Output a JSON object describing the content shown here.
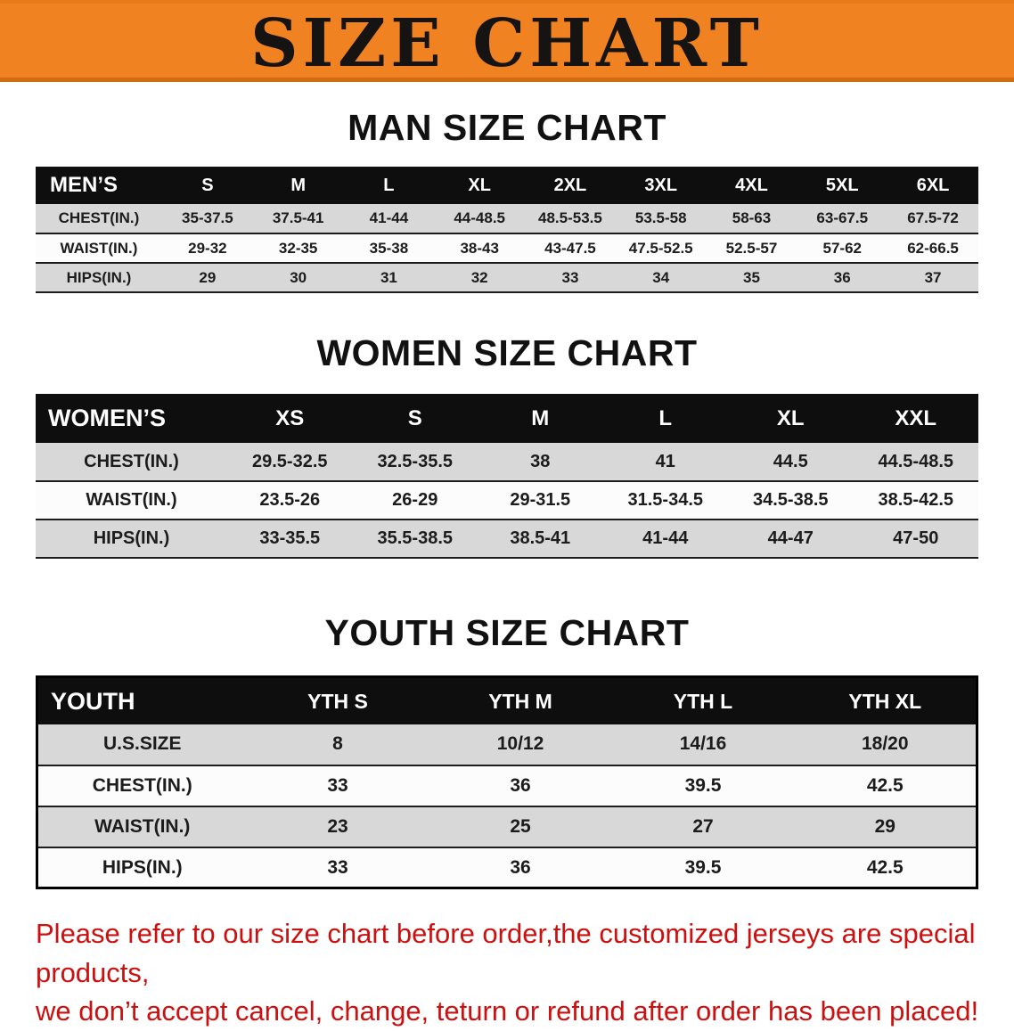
{
  "banner": {
    "title": "SIZE CHART"
  },
  "colors": {
    "banner_bg": "#F08222",
    "table_header_bg": "#0E0E0E",
    "row_shaded": "#D8D8D8",
    "disclaimer_red": "#CC1010",
    "title_text": "#161412"
  },
  "sections": [
    {
      "id": "men",
      "heading": "MAN SIZE CHART",
      "table": {
        "header": [
          "MEN’S",
          "S",
          "M",
          "L",
          "XL",
          "2XL",
          "3XL",
          "4XL",
          "5XL",
          "6XL"
        ],
        "rows": [
          [
            "CHEST(IN.)",
            "35-37.5",
            "37.5-41",
            "41-44",
            "44-48.5",
            "48.5-53.5",
            "53.5-58",
            "58-63",
            "63-67.5",
            "67.5-72"
          ],
          [
            "WAIST(IN.)",
            "29-32",
            "32-35",
            "35-38",
            "38-43",
            "43-47.5",
            "47.5-52.5",
            "52.5-57",
            "57-62",
            "62-66.5"
          ],
          [
            "HIPS(IN.)",
            "29",
            "30",
            "31",
            "32",
            "33",
            "34",
            "35",
            "36",
            "37"
          ]
        ]
      }
    },
    {
      "id": "women",
      "heading": "WOMEN SIZE CHART",
      "table": {
        "header": [
          "WOMEN’S",
          "XS",
          "S",
          "M",
          "L",
          "XL",
          "XXL"
        ],
        "rows": [
          [
            "CHEST(IN.)",
            "29.5-32.5",
            "32.5-35.5",
            "38",
            "41",
            "44.5",
            "44.5-48.5"
          ],
          [
            "WAIST(IN.)",
            "23.5-26",
            "26-29",
            "29-31.5",
            "31.5-34.5",
            "34.5-38.5",
            "38.5-42.5"
          ],
          [
            "HIPS(IN.)",
            "33-35.5",
            "35.5-38.5",
            "38.5-41",
            "41-44",
            "44-47",
            "47-50"
          ]
        ]
      }
    },
    {
      "id": "youth",
      "heading": "YOUTH SIZE CHART",
      "table": {
        "header": [
          "YOUTH",
          "YTH S",
          "YTH M",
          "YTH L",
          "YTH XL"
        ],
        "rows": [
          [
            "U.S.SIZE",
            "8",
            "10/12",
            "14/16",
            "18/20"
          ],
          [
            "CHEST(IN.)",
            "33",
            "36",
            "39.5",
            "42.5"
          ],
          [
            "WAIST(IN.)",
            "23",
            "25",
            "27",
            "29"
          ],
          [
            "HIPS(IN.)",
            "33",
            "36",
            "39.5",
            "42.5"
          ]
        ]
      }
    }
  ],
  "disclaimer": {
    "line1": "Please refer to our size chart before order,the customized jerseys are special products,",
    "line2": "we don’t accept cancel, change, teturn or refund after order has been placed!"
  }
}
